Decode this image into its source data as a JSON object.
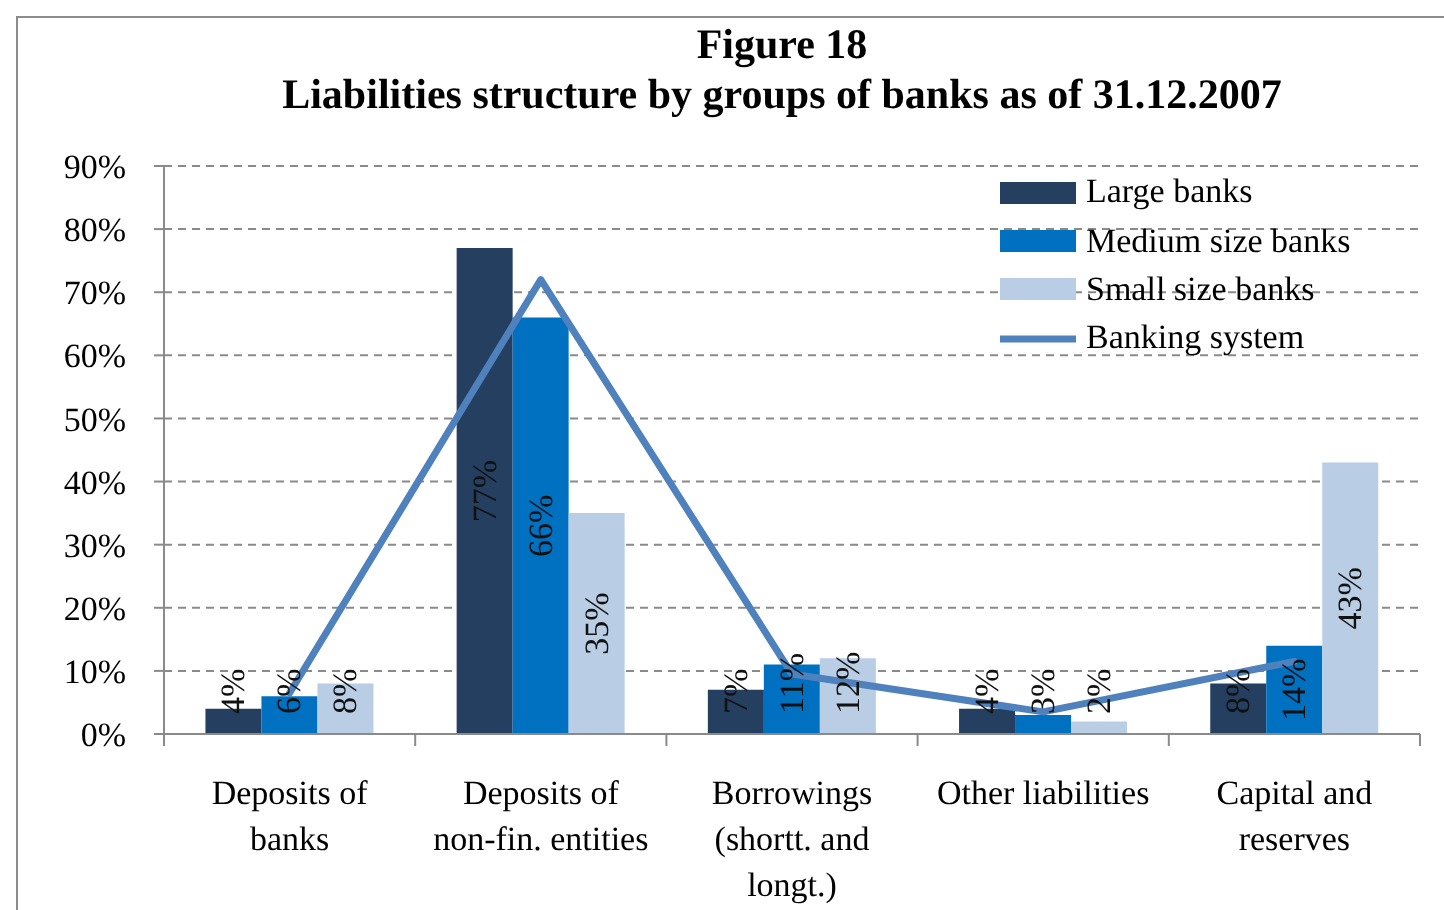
{
  "chart_data": {
    "type": "bar",
    "title": "Figure 18",
    "subtitle": "Liabilities structure by groups of banks as of 31.12.2007",
    "categories": [
      "Deposits of banks",
      "Deposits of non-fin. entities",
      "Borrowings (shortt. and longt.)",
      "Other liabilities",
      "Capital and reserves"
    ],
    "series": [
      {
        "name": "Large banks",
        "color": "#243f60",
        "values": [
          4,
          77,
          7,
          4,
          8
        ],
        "value_labels": [
          "4%",
          "77%",
          "7%",
          "4%",
          "8%"
        ]
      },
      {
        "name": "Medium size banks",
        "color": "#0070c0",
        "values": [
          6,
          66,
          11,
          3,
          14
        ],
        "value_labels": [
          "6%",
          "66%",
          "11%",
          "3%",
          "14%"
        ]
      },
      {
        "name": "Small size banks",
        "color": "#b9cde5",
        "values": [
          8,
          35,
          12,
          2,
          43
        ],
        "value_labels": [
          "8%",
          "35%",
          "12%",
          "2%",
          "43%"
        ]
      },
      {
        "name": "Banking system",
        "type": "line",
        "color": "#4f81bd",
        "values": [
          6.5,
          72,
          9.5,
          3.5,
          11.5
        ],
        "marker": "none",
        "line_style": "solid"
      }
    ],
    "ylim": [
      0,
      90
    ],
    "yticks": [
      {
        "value": 0,
        "label": "0%"
      },
      {
        "value": 10,
        "label": "10%"
      },
      {
        "value": 20,
        "label": "20%"
      },
      {
        "value": 30,
        "label": "30%"
      },
      {
        "value": 40,
        "label": "40%"
      },
      {
        "value": 50,
        "label": "50%"
      },
      {
        "value": 60,
        "label": "60%"
      },
      {
        "value": 70,
        "label": "70%"
      },
      {
        "value": 80,
        "label": "80%"
      },
      {
        "value": 90,
        "label": "90%"
      }
    ],
    "grid": "y",
    "legend": "top right"
  }
}
